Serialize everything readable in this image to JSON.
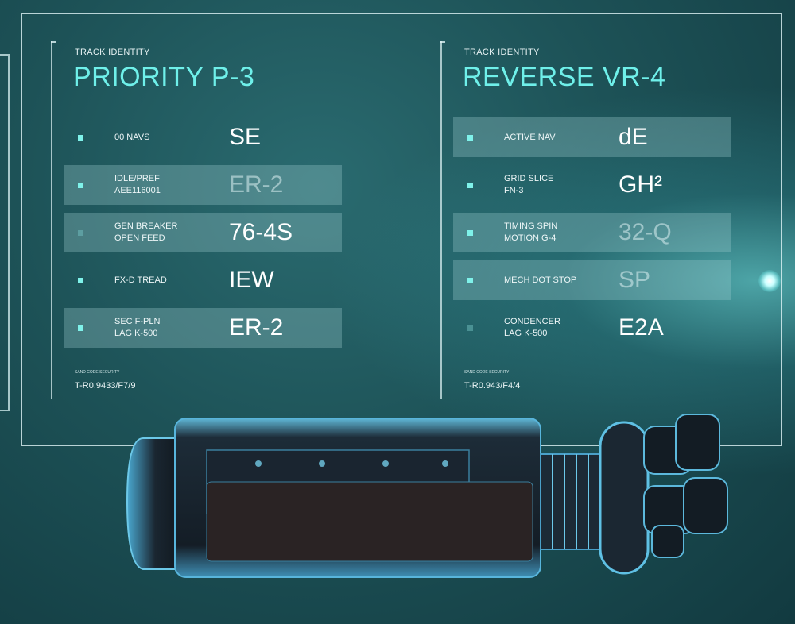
{
  "panels": [
    {
      "track_label": "TRACK IDENTITY",
      "title": "PRIORITY P-3",
      "rows": [
        {
          "label": [
            "00 NAVS"
          ],
          "value": "SE",
          "shaded": false,
          "value_faded": false,
          "bullet_dim": false
        },
        {
          "label": [
            "IDLE/PREF",
            "AEE116001"
          ],
          "value": "ER-2",
          "shaded": true,
          "value_faded": true,
          "bullet_dim": false
        },
        {
          "label": [
            "GEN BREAKER",
            "OPEN FEED"
          ],
          "value": "76-4S",
          "shaded": true,
          "value_faded": false,
          "bullet_dim": true
        },
        {
          "label": [
            "FX-D TREAD"
          ],
          "value": "IEW",
          "shaded": false,
          "value_faded": false,
          "bullet_dim": false
        },
        {
          "label": [
            "SEC F-PLN",
            "LAG K-500"
          ],
          "value": "ER-2",
          "shaded": true,
          "value_faded": false,
          "bullet_dim": false
        }
      ],
      "footer_small": "SAND CODE SECURITY",
      "footer_code": "T-R0.9433/F7/9"
    },
    {
      "track_label": "TRACK IDENTITY",
      "title": "REVERSE VR-4",
      "rows": [
        {
          "label": [
            "ACTIVE NAV"
          ],
          "value": "dE",
          "shaded": true,
          "value_faded": false,
          "bullet_dim": false
        },
        {
          "label": [
            "GRID SLICE",
            "FN-3"
          ],
          "value": "GH²",
          "shaded": false,
          "value_faded": false,
          "bullet_dim": false
        },
        {
          "label": [
            "TIMING SPIN",
            "MOTION G-4"
          ],
          "value": "32-Q",
          "shaded": true,
          "value_faded": true,
          "bullet_dim": false
        },
        {
          "label": [
            "MECH DOT STOP"
          ],
          "value": "SP",
          "shaded": true,
          "value_faded": true,
          "bullet_dim": false
        },
        {
          "label": [
            "CONDENCER",
            "LAG K-500"
          ],
          "value": "E2A",
          "shaded": false,
          "value_faded": false,
          "bullet_dim": true
        }
      ],
      "footer_small": "SAND CODE SECURITY",
      "footer_code": "T-R0.943/F4/4"
    }
  ],
  "colors": {
    "accent": "#6ff0ea",
    "bullet": "#7ff2ea",
    "background_dark": "#123a40",
    "background_mid": "#2a6b70"
  },
  "icons": [
    "bullet-square-icon",
    "mechanical-device-illustration"
  ]
}
